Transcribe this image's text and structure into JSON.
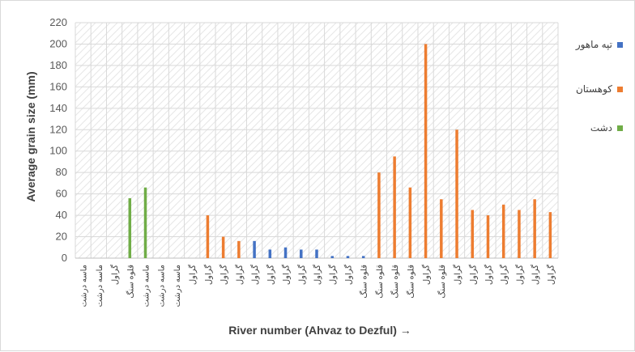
{
  "chart_data": {
    "type": "bar",
    "xlabel": "River number (Ahvaz to Dezful) →",
    "ylabel": "Average grain size (mm)",
    "ylim": [
      0,
      220
    ],
    "yticks": [
      0,
      20,
      40,
      60,
      80,
      100,
      120,
      140,
      160,
      180,
      200,
      220
    ],
    "grid": "hatched",
    "legend_position": "right",
    "colors": {
      "tappeh": "#4472C4",
      "kuhestan": "#ED7D31",
      "dasht": "#70AD47",
      "grid": "#d9d9d9",
      "axis": "#bfbfbf"
    },
    "series": [
      {
        "name": "تپه ماهور",
        "color": "#4472C4",
        "values": [
          null,
          null,
          null,
          null,
          null,
          null,
          null,
          null,
          null,
          null,
          null,
          16,
          8,
          10,
          8,
          8,
          2,
          2,
          2,
          null,
          null,
          null,
          null,
          null,
          null,
          null,
          null,
          null,
          null,
          null,
          null
        ]
      },
      {
        "name": "کوهستان",
        "color": "#ED7D31",
        "values": [
          null,
          null,
          null,
          null,
          null,
          null,
          null,
          null,
          40,
          20,
          16,
          null,
          null,
          null,
          null,
          null,
          null,
          null,
          null,
          80,
          95,
          66,
          200,
          55,
          120,
          45,
          40,
          50,
          45,
          55,
          43
        ]
      },
      {
        "name": "دشت",
        "color": "#70AD47",
        "values": [
          null,
          null,
          null,
          56,
          66,
          null,
          null,
          null,
          null,
          null,
          null,
          null,
          null,
          null,
          null,
          null,
          null,
          null,
          null,
          null,
          null,
          null,
          null,
          null,
          null,
          null,
          null,
          null,
          null,
          null,
          null
        ]
      }
    ],
    "categories": [
      "ماسه درشت",
      "ماسه درشت",
      "گراول",
      "قلوه سنگ",
      "ماسه درشت",
      "ماسه درشت",
      "ماسه درشت",
      "گراول",
      "گراول",
      "گراول",
      "گراول",
      "گراول",
      "گراول",
      "گراول",
      "گراول",
      "گراول",
      "گراول",
      "گراول",
      "قلوه سنگ",
      "قلوه سنگ",
      "قلوه سنگ",
      "قلوه سنگ",
      "گراول",
      "قلوه سنگ",
      "گراول",
      "گراول",
      "گراول",
      "گراول",
      "گراول",
      "گراول",
      "گراول"
    ]
  }
}
